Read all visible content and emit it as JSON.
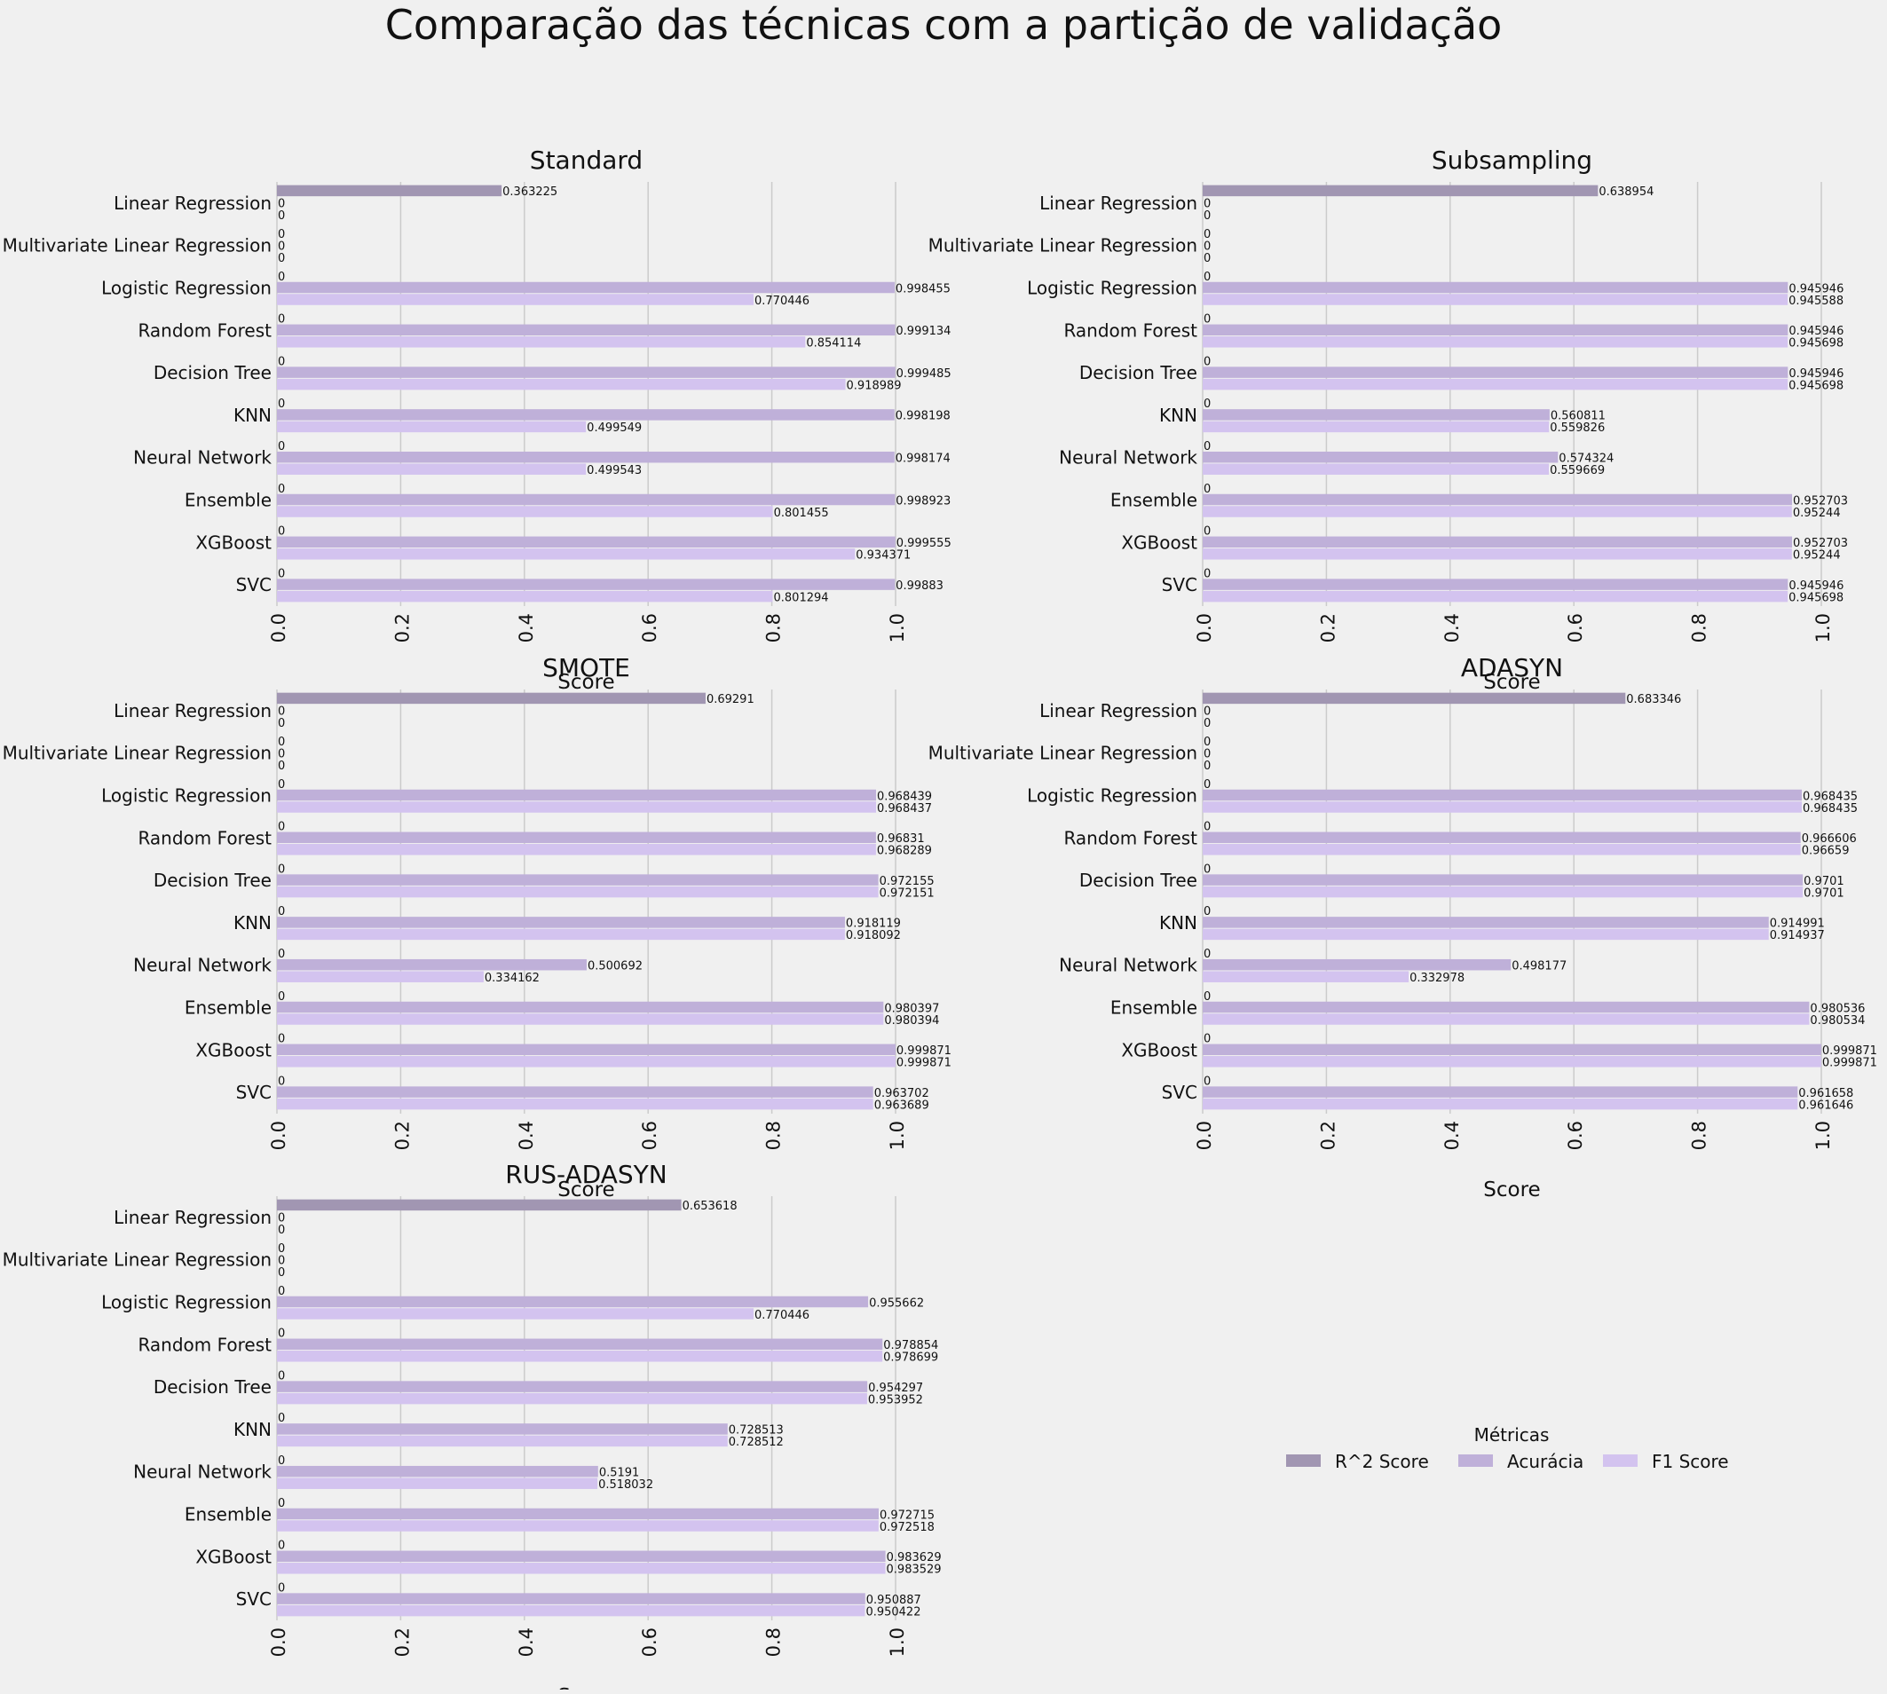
{
  "title": "Comparação das técnicas com a partição de validação",
  "colors": {
    "background": "#f0f0f0",
    "grid": "#cbcbcb",
    "r2": "#a196b2",
    "acc": "#bfb0d9",
    "f1": "#d3c3ef",
    "text": "#111111"
  },
  "legend": {
    "title": "Métricas",
    "items": [
      "R^2 Score",
      "Acurácia",
      "F1 Score"
    ],
    "placement": "lower-right empty panel"
  },
  "chart_data": [
    {
      "type": "bar",
      "orientation": "horizontal",
      "title": "Standard",
      "xlabel": "Score",
      "xlim": [
        0,
        1
      ],
      "xticks": [
        "0.0",
        "0.2",
        "0.4",
        "0.6",
        "0.8",
        "1.0"
      ],
      "categories": [
        "Linear Regression",
        "Multivariate Linear Regression",
        "Logistic Regression",
        "Random Forest",
        "Decision Tree",
        "KNN",
        "Neural Network",
        "Ensemble",
        "XGBoost",
        "SVC"
      ],
      "series": [
        {
          "name": "R^2 Score",
          "values": [
            0.363225,
            0,
            0,
            0,
            0,
            0,
            0,
            0,
            0,
            0
          ],
          "labels": [
            "0.363225",
            "0",
            "0",
            "0",
            "0",
            "0",
            "0",
            "0",
            "0",
            "0"
          ]
        },
        {
          "name": "Acurácia",
          "values": [
            0,
            0,
            0.998455,
            0.999134,
            0.999485,
            0.998198,
            0.998174,
            0.998923,
            0.999555,
            0.99883
          ],
          "labels": [
            "0",
            "0",
            "0.998455",
            "0.999134",
            "0.999485",
            "0.998198",
            "0.998174",
            "0.998923",
            "0.999555",
            "0.99883"
          ]
        },
        {
          "name": "F1 Score",
          "values": [
            0,
            0,
            0.770446,
            0.854114,
            0.918989,
            0.499549,
            0.499543,
            0.801455,
            0.934371,
            0.801294
          ],
          "labels": [
            "0",
            "0",
            "0.770446",
            "0.854114",
            "0.918989",
            "0.499549",
            "0.499543",
            "0.801455",
            "0.934371",
            "0.801294"
          ]
        }
      ]
    },
    {
      "type": "bar",
      "orientation": "horizontal",
      "title": "Subsampling",
      "xlabel": "Score",
      "xlim": [
        0,
        1
      ],
      "xticks": [
        "0.0",
        "0.2",
        "0.4",
        "0.6",
        "0.8",
        "1.0"
      ],
      "categories": [
        "Linear Regression",
        "Multivariate Linear Regression",
        "Logistic Regression",
        "Random Forest",
        "Decision Tree",
        "KNN",
        "Neural Network",
        "Ensemble",
        "XGBoost",
        "SVC"
      ],
      "series": [
        {
          "name": "R^2 Score",
          "values": [
            0.638954,
            0,
            0,
            0,
            0,
            0,
            0,
            0,
            0,
            0
          ],
          "labels": [
            "0.638954",
            "0",
            "0",
            "0",
            "0",
            "0",
            "0",
            "0",
            "0",
            "0"
          ]
        },
        {
          "name": "Acurácia",
          "values": [
            0,
            0,
            0.945946,
            0.945946,
            0.945946,
            0.560811,
            0.574324,
            0.952703,
            0.952703,
            0.945946
          ],
          "labels": [
            "0",
            "0",
            "0.945946",
            "0.945946",
            "0.945946",
            "0.560811",
            "0.574324",
            "0.952703",
            "0.952703",
            "0.945946"
          ]
        },
        {
          "name": "F1 Score",
          "values": [
            0,
            0,
            0.945588,
            0.945698,
            0.945698,
            0.559826,
            0.559669,
            0.95244,
            0.95244,
            0.945698
          ],
          "labels": [
            "0",
            "0",
            "0.945588",
            "0.945698",
            "0.945698",
            "0.559826",
            "0.559669",
            "0.95244",
            "0.95244",
            "0.945698"
          ]
        }
      ]
    },
    {
      "type": "bar",
      "orientation": "horizontal",
      "title": "SMOTE",
      "xlabel": "Score",
      "xlim": [
        0,
        1
      ],
      "xticks": [
        "0.0",
        "0.2",
        "0.4",
        "0.6",
        "0.8",
        "1.0"
      ],
      "categories": [
        "Linear Regression",
        "Multivariate Linear Regression",
        "Logistic Regression",
        "Random Forest",
        "Decision Tree",
        "KNN",
        "Neural Network",
        "Ensemble",
        "XGBoost",
        "SVC"
      ],
      "series": [
        {
          "name": "R^2 Score",
          "values": [
            0.69291,
            0,
            0,
            0,
            0,
            0,
            0,
            0,
            0,
            0
          ],
          "labels": [
            "0.69291",
            "0",
            "0",
            "0",
            "0",
            "0",
            "0",
            "0",
            "0",
            "0"
          ]
        },
        {
          "name": "Acurácia",
          "values": [
            0,
            0,
            0.968439,
            0.96831,
            0.972155,
            0.918119,
            0.500692,
            0.980397,
            0.999871,
            0.963702
          ],
          "labels": [
            "0",
            "0",
            "0.968439",
            "0.96831",
            "0.972155",
            "0.918119",
            "0.500692",
            "0.980397",
            "0.999871",
            "0.963702"
          ]
        },
        {
          "name": "F1 Score",
          "values": [
            0,
            0,
            0.968437,
            0.968289,
            0.972151,
            0.918092,
            0.334162,
            0.980394,
            0.999871,
            0.963689
          ],
          "labels": [
            "0",
            "0",
            "0.968437",
            "0.968289",
            "0.972151",
            "0.918092",
            "0.334162",
            "0.980394",
            "0.999871",
            "0.963689"
          ]
        }
      ]
    },
    {
      "type": "bar",
      "orientation": "horizontal",
      "title": "ADASYN",
      "xlabel": "Score",
      "xlim": [
        0,
        1
      ],
      "xticks": [
        "0.0",
        "0.2",
        "0.4",
        "0.6",
        "0.8",
        "1.0"
      ],
      "categories": [
        "Linear Regression",
        "Multivariate Linear Regression",
        "Logistic Regression",
        "Random Forest",
        "Decision Tree",
        "KNN",
        "Neural Network",
        "Ensemble",
        "XGBoost",
        "SVC"
      ],
      "series": [
        {
          "name": "R^2 Score",
          "values": [
            0.683346,
            0,
            0,
            0,
            0,
            0,
            0,
            0,
            0,
            0
          ],
          "labels": [
            "0.683346",
            "0",
            "0",
            "0",
            "0",
            "0",
            "0",
            "0",
            "0",
            "0"
          ]
        },
        {
          "name": "Acurácia",
          "values": [
            0,
            0,
            0.968435,
            0.966606,
            0.9701,
            0.914991,
            0.498177,
            0.980536,
            0.999871,
            0.961658
          ],
          "labels": [
            "0",
            "0",
            "0.968435",
            "0.966606",
            "0.9701",
            "0.914991",
            "0.498177",
            "0.980536",
            "0.999871",
            "0.961658"
          ]
        },
        {
          "name": "F1 Score",
          "values": [
            0,
            0,
            0.968435,
            0.96659,
            0.9701,
            0.914937,
            0.332978,
            0.980534,
            0.999871,
            0.961646
          ],
          "labels": [
            "0",
            "0",
            "0.968435",
            "0.96659",
            "0.9701",
            "0.914937",
            "0.332978",
            "0.980534",
            "0.999871",
            "0.961646"
          ]
        }
      ]
    },
    {
      "type": "bar",
      "orientation": "horizontal",
      "title": "RUS-ADASYN",
      "xlabel": "Score",
      "xlim": [
        0,
        1
      ],
      "xticks": [
        "0.0",
        "0.2",
        "0.4",
        "0.6",
        "0.8",
        "1.0"
      ],
      "categories": [
        "Linear Regression",
        "Multivariate Linear Regression",
        "Logistic Regression",
        "Random Forest",
        "Decision Tree",
        "KNN",
        "Neural Network",
        "Ensemble",
        "XGBoost",
        "SVC"
      ],
      "series": [
        {
          "name": "R^2 Score",
          "values": [
            0.653618,
            0,
            0,
            0,
            0,
            0,
            0,
            0,
            0,
            0
          ],
          "labels": [
            "0.653618",
            "0",
            "0",
            "0",
            "0",
            "0",
            "0",
            "0",
            "0",
            "0"
          ]
        },
        {
          "name": "Acurácia",
          "values": [
            0,
            0,
            0.955662,
            0.978854,
            0.954297,
            0.728513,
            0.5191,
            0.972715,
            0.983629,
            0.950887
          ],
          "labels": [
            "0",
            "0",
            "0.955662",
            "0.978854",
            "0.954297",
            "0.728513",
            "0.5191",
            "0.972715",
            "0.983629",
            "0.950887"
          ]
        },
        {
          "name": "F1 Score",
          "values": [
            0,
            0,
            0.770446,
            0.978699,
            0.953952,
            0.728512,
            0.518032,
            0.972518,
            0.983529,
            0.950422
          ],
          "labels": [
            "0",
            "0",
            "0.770446",
            "0.978699",
            "0.953952",
            "0.728512",
            "0.518032",
            "0.972518",
            "0.983529",
            "0.950422"
          ]
        }
      ]
    }
  ]
}
